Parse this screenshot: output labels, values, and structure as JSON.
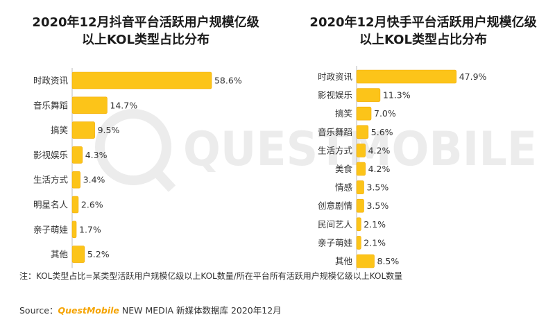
{
  "colors": {
    "bar": "#fcc419",
    "bar_edge": "#f2a900",
    "brand": "#f5a300",
    "watermark": "#ececec"
  },
  "watermark": {
    "text": "QUESTMOBILE"
  },
  "chart_data": [
    {
      "type": "bar",
      "orientation": "horizontal",
      "title_line1": "2020年12月抖音平台活跃用户规模亿级",
      "title_line2": "以上KOL类型占比分布",
      "categories": [
        "时政资讯",
        "音乐舞蹈",
        "搞笑",
        "影视娱乐",
        "生活方式",
        "明星名人",
        "亲子萌娃",
        "其他"
      ],
      "values": [
        58.6,
        14.7,
        9.5,
        4.3,
        3.4,
        2.6,
        1.7,
        5.2
      ],
      "labels": [
        "58.6%",
        "14.7%",
        "9.5%",
        "4.3%",
        "3.4%",
        "2.6%",
        "1.7%",
        "5.2%"
      ],
      "unit": "%"
    },
    {
      "type": "bar",
      "orientation": "horizontal",
      "title_line1": "2020年12月快手平台活跃用户规模亿级",
      "title_line2": "以上KOL类型占比分布",
      "categories": [
        "时政资讯",
        "影视娱乐",
        "搞笑",
        "音乐舞蹈",
        "生活方式",
        "美食",
        "情感",
        "创意剧情",
        "民间艺人",
        "亲子萌娃",
        "其他"
      ],
      "values": [
        47.9,
        11.3,
        7.0,
        5.6,
        4.2,
        4.2,
        3.5,
        3.5,
        2.1,
        2.1,
        8.5
      ],
      "labels": [
        "47.9%",
        "11.3%",
        "7.0%",
        "5.6%",
        "4.2%",
        "4.2%",
        "3.5%",
        "3.5%",
        "2.1%",
        "2.1%",
        "8.5%"
      ],
      "unit": "%"
    }
  ],
  "footnote": "注：KOL类型占比=某类型活跃用户规模亿级以上KOL数量/所在平台所有活跃用户规模亿级以上KOL数量",
  "source": {
    "prefix": "Source：",
    "brand": "QuestMobile",
    "suffix": " NEW MEDIA 新媒体数据库 2020年12月"
  }
}
